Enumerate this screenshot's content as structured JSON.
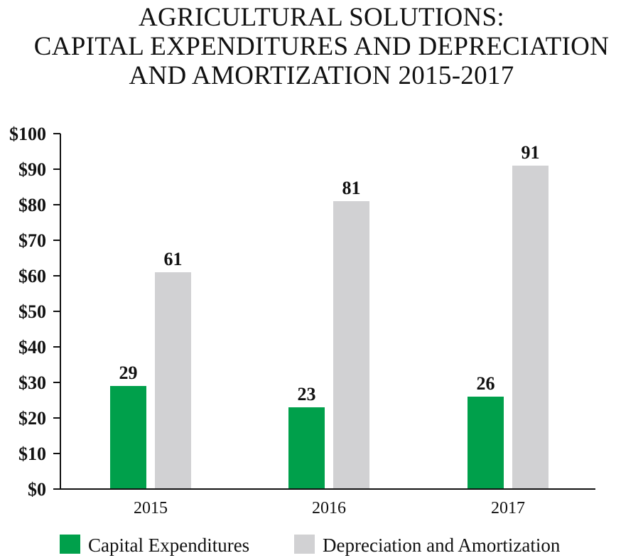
{
  "chart_data": {
    "type": "bar",
    "title_lines": [
      "AGRICULTURAL SOLUTIONS:",
      "CAPITAL EXPENDITURES AND DEPRECIATION",
      "AND AMORTIZATION 2015-2017"
    ],
    "categories": [
      "2015",
      "2016",
      "2017"
    ],
    "series": [
      {
        "name": "Capital Expenditures",
        "values": [
          29,
          23,
          26
        ],
        "color": "#00a04b"
      },
      {
        "name": "Depreciation and Amortization",
        "values": [
          61,
          81,
          91
        ],
        "color": "#d1d1d3"
      }
    ],
    "ylim": [
      0,
      100
    ],
    "yticks": [
      0,
      10,
      20,
      30,
      40,
      50,
      60,
      70,
      80,
      90,
      100
    ],
    "ytick_labels": [
      "$0",
      "$10",
      "$20",
      "$30",
      "$40",
      "$50",
      "$60",
      "$70",
      "$80",
      "$90",
      "$100"
    ],
    "xlabel": "",
    "ylabel": "",
    "legend_position": "bottom",
    "grid": false
  }
}
